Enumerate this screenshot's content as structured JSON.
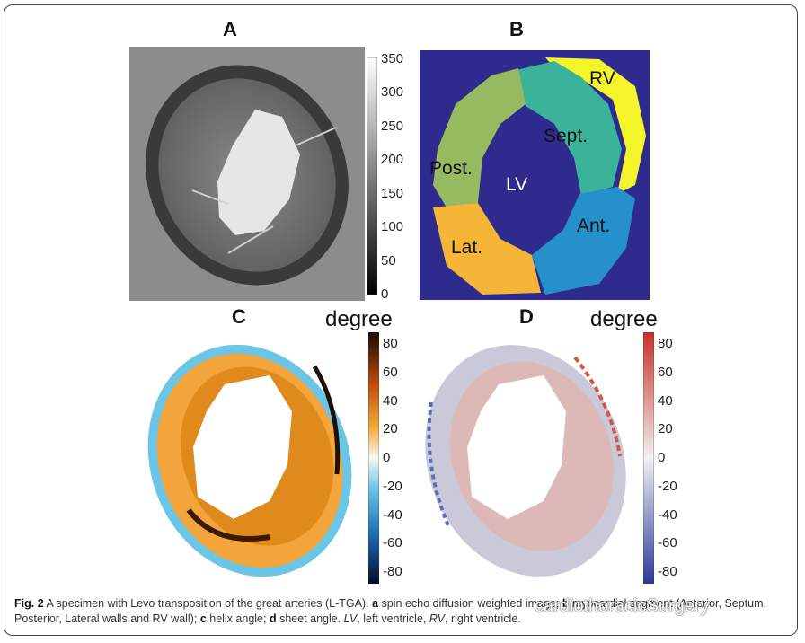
{
  "panels": {
    "a": {
      "label": "A",
      "colorbar_ticks": [
        "350",
        "300",
        "250",
        "200",
        "150",
        "100",
        "50",
        "0"
      ]
    },
    "b": {
      "label": "B",
      "segments": [
        "RV",
        "Sept.",
        "Post.",
        "LV",
        "Lat.",
        "Ant."
      ]
    },
    "c": {
      "label": "C",
      "unit": "degree",
      "colorbar_ticks": [
        "80",
        "60",
        "40",
        "20",
        "0",
        "-20",
        "-40",
        "-60",
        "-80"
      ]
    },
    "d": {
      "label": "D",
      "unit": "degree",
      "colorbar_ticks": [
        "80",
        "60",
        "40",
        "20",
        "0",
        "-20",
        "-40",
        "-60",
        "-80"
      ]
    }
  },
  "caption": {
    "fig_label": "Fig. 2",
    "text1": " A specimen with Levo transposition of the great arteries (L-TGA). ",
    "a": "a",
    "text_a": " spin echo diffusion weighted image; ",
    "b": "b",
    "text_b": " myocardial segment (Anterior, Septum, Posterior, Lateral walls and RV wall); ",
    "c": "c",
    "text_c": " helix angle; ",
    "d": "d",
    "text_d": " sheet angle. ",
    "lv": "LV",
    "lv_def": ", left ventricle, ",
    "rv": "RV",
    "rv_def": ", right ventricle."
  },
  "watermark": "cardiothoracicSurgery",
  "colors": {
    "segment_bg": "#2e2a8e",
    "rv": "#f4f42a",
    "sept": "#3bb39a",
    "post": "#97b960",
    "lat": "#f5b536",
    "ant": "#2590c9"
  }
}
